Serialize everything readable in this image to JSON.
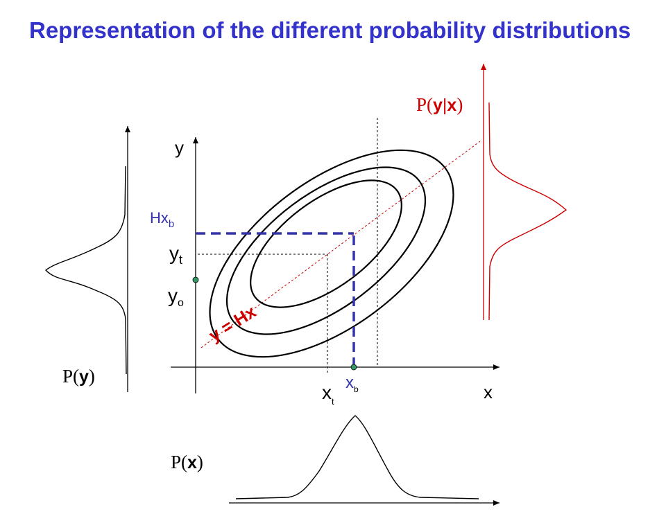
{
  "title": "Representation of the different probability distributions",
  "labels": {
    "p_y_given_x": {
      "P": "P(",
      "y": "y",
      "bar": "|",
      "x": "x",
      "close": ")"
    },
    "p_y": {
      "P": "P(",
      "y": "y",
      "close": ")"
    },
    "p_x": {
      "P": "P(",
      "x": "x",
      "close": ")"
    },
    "y_axis": "y",
    "x_axis": "x",
    "hxb": {
      "base": "Hx",
      "sub": "b"
    },
    "yt": {
      "base": "y",
      "sub": "t"
    },
    "yo": {
      "base": "y",
      "sub": "o"
    },
    "xt": {
      "base": "x",
      "sub": "t"
    },
    "xb": {
      "base": "x",
      "sub": "b"
    },
    "line_eq": "y = Hx"
  },
  "colors": {
    "title": "#3333cc",
    "black": "#000000",
    "red": "#cc0000",
    "blue_dashed": "#3333aa",
    "point": "#339966"
  }
}
